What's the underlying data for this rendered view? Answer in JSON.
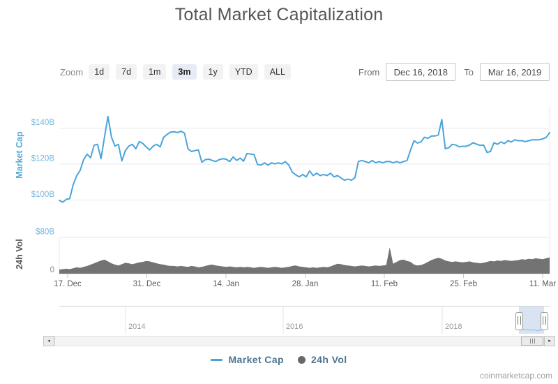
{
  "title": "Total Market Capitalization",
  "toolbar": {
    "zoom_label": "Zoom",
    "buttons": [
      {
        "label": "1d",
        "selected": false
      },
      {
        "label": "7d",
        "selected": false
      },
      {
        "label": "1m",
        "selected": false
      },
      {
        "label": "3m",
        "selected": true
      },
      {
        "label": "1y",
        "selected": false
      },
      {
        "label": "YTD",
        "selected": false
      },
      {
        "label": "ALL",
        "selected": false
      }
    ],
    "from_label": "From",
    "from_value": "Dec 16, 2018",
    "to_label": "To",
    "to_value": "Mar 16, 2019"
  },
  "colors": {
    "series_line": "#4aa4db",
    "axis_tick_blue": "#74b7dd",
    "axis_title_blue": "#55a8d6",
    "volume_fill": "#737373",
    "grid": "#e9e9e9",
    "selected_button_bg": "#e6ebf5"
  },
  "chart_data": [
    {
      "type": "line",
      "name": "Market Cap",
      "ylabel": "Market Cap",
      "unit": "USD billions",
      "x_range": [
        "Dec 16, 2018",
        "Mar 16, 2019"
      ],
      "x_ticks": [
        "17. Dec",
        "31. Dec",
        "14. Jan",
        "28. Jan",
        "11. Feb",
        "25. Feb",
        "11. Mar"
      ],
      "y_ticks": [
        "$100B",
        "$120B",
        "$140B"
      ],
      "ylim": [
        95,
        150
      ],
      "values": [
        99.8,
        98.8,
        100.4,
        100.8,
        108.5,
        113.5,
        116.5,
        122.5,
        125.5,
        123.5,
        130.5,
        131,
        123,
        135,
        146.5,
        135,
        130,
        131,
        121.8,
        127.5,
        130,
        131,
        128.5,
        132.5,
        131.5,
        129.5,
        127.9,
        130,
        131,
        129.5,
        134.9,
        136.5,
        137.8,
        138,
        137.5,
        138.3,
        137.2,
        128.5,
        127,
        127.5,
        127.9,
        121,
        122.5,
        122.7,
        122,
        121.4,
        122.5,
        123,
        122.7,
        121.4,
        124,
        122,
        123.3,
        121.6,
        125.9,
        125.6,
        125.3,
        119.8,
        119.4,
        120.7,
        119.4,
        120.7,
        120.1,
        120.7,
        120.1,
        121.4,
        119.4,
        115.5,
        114,
        112.9,
        114.2,
        112.9,
        116.2,
        113.6,
        114.9,
        113.6,
        114.2,
        113.6,
        114.9,
        112.9,
        113.6,
        112.3,
        111,
        111.6,
        111,
        112.3,
        121.4,
        122,
        121.4,
        120.7,
        122,
        120.7,
        121.4,
        120.7,
        121.4,
        121.4,
        120.7,
        121.4,
        120.7,
        121.4,
        122,
        127.8,
        133,
        131.7,
        132.3,
        134.9,
        134.3,
        135.6,
        135.6,
        136.2,
        144.8,
        128.5,
        129.1,
        131,
        130.6,
        129.6,
        129.9,
        129.9,
        130.6,
        131.9,
        131.1,
        130.4,
        130.6,
        126.5,
        127,
        131.9,
        131,
        132.3,
        131.4,
        133,
        132.3,
        133.5,
        133,
        133,
        132.5,
        133,
        133.5,
        133.5,
        133.5,
        134,
        134.8,
        137.5
      ]
    },
    {
      "type": "area",
      "name": "24h Vol",
      "ylabel": "24h Vol",
      "unit": "USD billions",
      "y_ticks": [
        "0",
        "$80B"
      ],
      "ylim": [
        0,
        80
      ],
      "values": [
        9,
        10,
        11,
        10,
        12,
        14,
        13,
        15,
        17,
        20,
        23,
        26,
        29,
        31,
        27,
        23,
        20,
        18,
        21,
        24,
        23,
        21,
        23,
        25,
        26,
        28,
        27,
        25,
        23,
        21,
        20,
        18,
        17,
        17,
        16,
        17,
        16,
        15,
        17,
        16,
        14,
        15,
        17,
        19,
        20,
        18,
        17,
        16,
        15,
        16,
        15,
        14,
        15,
        14,
        15,
        14,
        13,
        14,
        15,
        14,
        13,
        14,
        15,
        14,
        13,
        14,
        15,
        17,
        18,
        16,
        15,
        14,
        13,
        14,
        13,
        14,
        15,
        14,
        16,
        19,
        22,
        21,
        19,
        18,
        17,
        16,
        17,
        18,
        17,
        16,
        17,
        18,
        17,
        18,
        19,
        58,
        22,
        26,
        30,
        31,
        28,
        26,
        20,
        18,
        19,
        22,
        26,
        30,
        33,
        35,
        33,
        29,
        27,
        26,
        27,
        26,
        25,
        26,
        27,
        25,
        24,
        23,
        24,
        26,
        28,
        27,
        29,
        28,
        30,
        29,
        28,
        29,
        30,
        32,
        31,
        33,
        32,
        34,
        33,
        32,
        34,
        36
      ]
    }
  ],
  "navigator": {
    "years": [
      "2014",
      "2016",
      "2018"
    ]
  },
  "legend": {
    "items": [
      {
        "label": "Market Cap",
        "swatch": "line"
      },
      {
        "label": "24h Vol",
        "swatch": "dot"
      }
    ]
  },
  "icons": {
    "scroll_left": "◂",
    "scroll_right": "▸"
  },
  "footer": {
    "credits": "coinmarketcap.com"
  }
}
